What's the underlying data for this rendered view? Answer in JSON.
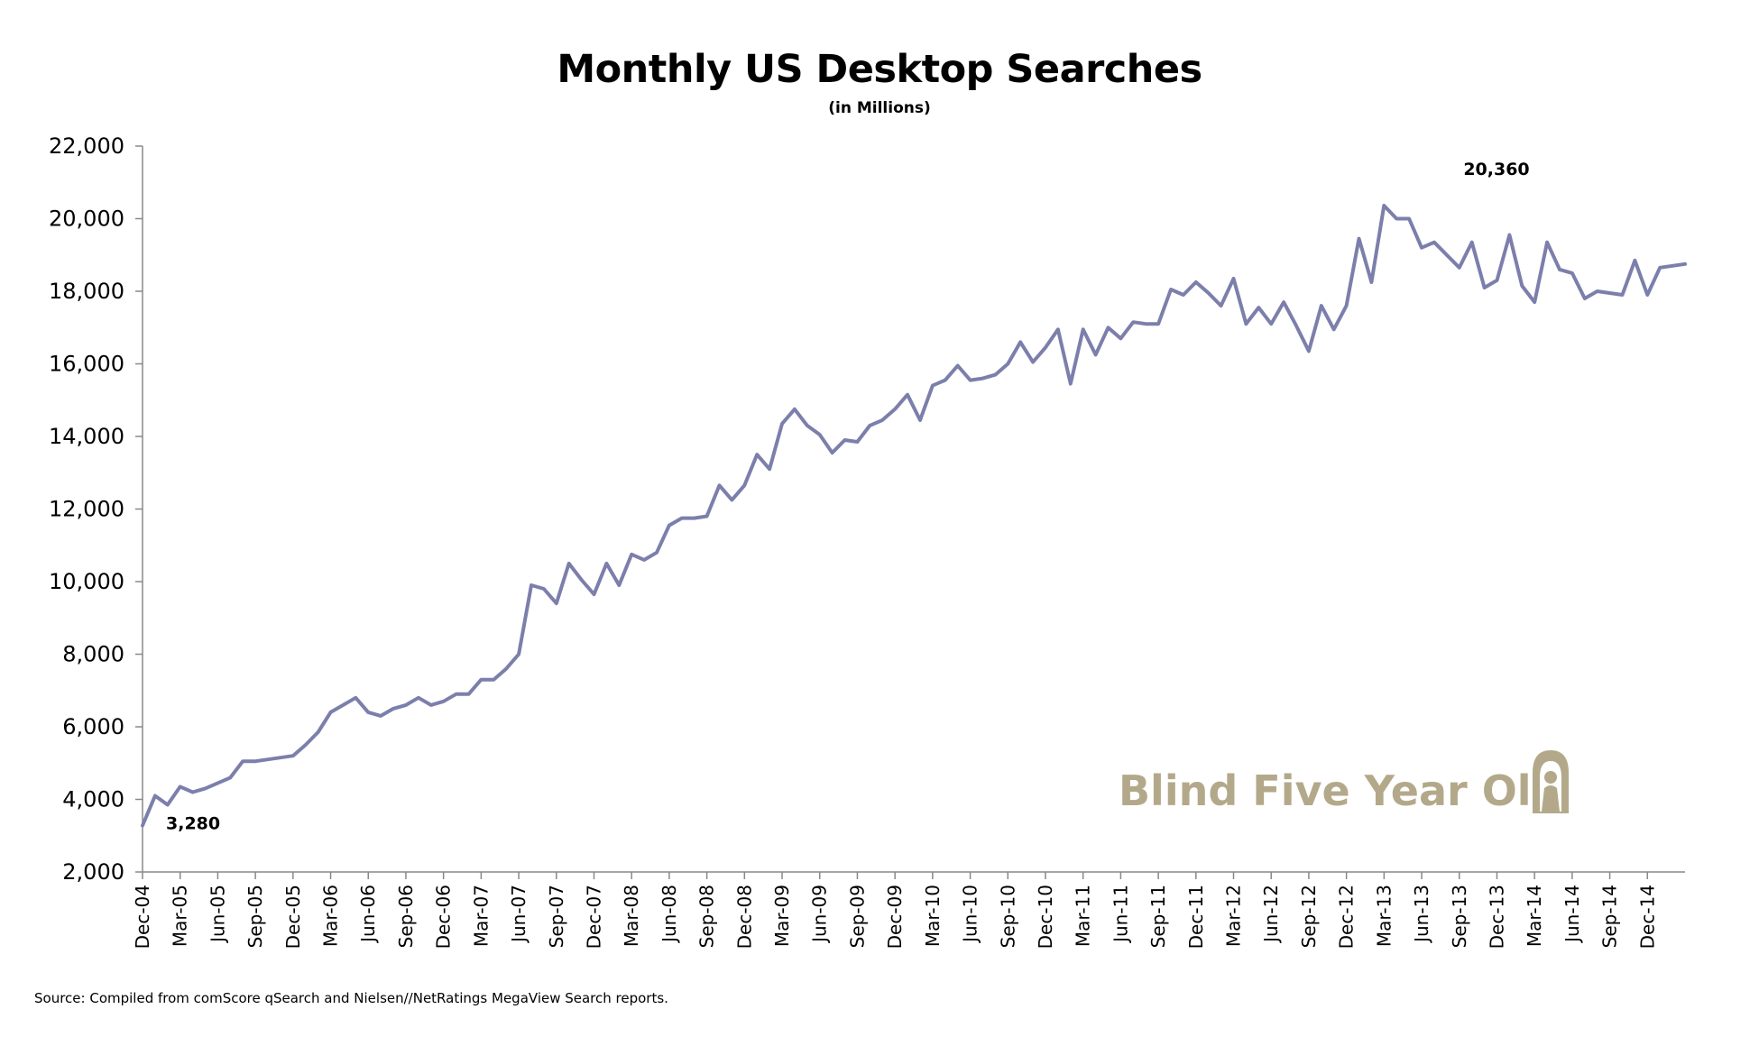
{
  "chart_data": {
    "type": "line",
    "title": "Monthly US Desktop Searches",
    "subtitle": "(in Millions)",
    "xlabel": "",
    "ylabel": "",
    "ylim": [
      2000,
      22000
    ],
    "yticks": [
      "2,000",
      "4,000",
      "6,000",
      "8,000",
      "10,000",
      "12,000",
      "14,000",
      "16,000",
      "18,000",
      "20,000",
      "22,000"
    ],
    "ytick_values": [
      2000,
      4000,
      6000,
      8000,
      10000,
      12000,
      14000,
      16000,
      18000,
      20000,
      22000
    ],
    "xticks": [
      "Dec-04",
      "Mar-05",
      "Jun-05",
      "Sep-05",
      "Dec-05",
      "Mar-06",
      "Jun-06",
      "Sep-06",
      "Dec-06",
      "Mar-07",
      "Jun-07",
      "Sep-07",
      "Dec-07",
      "Mar-08",
      "Jun-08",
      "Sep-08",
      "Dec-08",
      "Mar-09",
      "Jun-09",
      "Sep-09",
      "Dec-09",
      "Mar-10",
      "Jun-10",
      "Sep-10",
      "Dec-10",
      "Mar-11",
      "Jun-11",
      "Sep-11",
      "Dec-11",
      "Mar-12",
      "Jun-12",
      "Sep-12",
      "Dec-12",
      "Mar-13",
      "Jun-13",
      "Sep-13",
      "Dec-13",
      "Mar-14",
      "Jun-14",
      "Sep-14",
      "Dec-14"
    ],
    "grid": false,
    "line_color": "#7c7fab",
    "series": [
      {
        "values": [
          3280,
          4100,
          3850,
          4350,
          4200,
          4300,
          4450,
          4600,
          5050,
          5050,
          5100,
          5150,
          5200,
          5500,
          5850,
          6400,
          6600,
          6800,
          6400,
          6300,
          6500,
          6600,
          6800,
          6600,
          6700,
          6900,
          6900,
          7300,
          7300,
          7600,
          8000,
          9900,
          9800,
          9400,
          10500,
          10050,
          9650,
          10500,
          9900,
          10750,
          10600,
          10800,
          11550,
          11750,
          11750,
          11800,
          12650,
          12250,
          12650,
          13500,
          13100,
          14350,
          14750,
          14300,
          14050,
          13550,
          13900,
          13850,
          14300,
          14450,
          14750,
          15150,
          14450,
          15400,
          15550,
          15950,
          15550,
          15600,
          15700,
          16000,
          16600,
          16050,
          16450,
          16950,
          15450,
          16950,
          16250,
          17000,
          16700,
          17150,
          17100,
          17100,
          18050,
          17900,
          18250,
          17950,
          17600,
          18350,
          17100,
          17550,
          17100,
          17700,
          17050,
          16350,
          17600,
          16950,
          17600,
          19450,
          18250,
          20360,
          20000,
          20000,
          19200,
          19350,
          19000,
          18650,
          19350,
          18100,
          18300,
          19550,
          18150,
          17700,
          19350,
          18600,
          18500,
          17800,
          18000,
          17950,
          17900,
          18850,
          17900,
          18650,
          18700,
          18750
        ]
      }
    ],
    "annotations": [
      {
        "text": "3,280",
        "index": 0
      },
      {
        "text": "20,360",
        "index": 99
      }
    ]
  },
  "source_note": "Source: Compiled from comScore qSearch and Nielsen//NetRatings MegaView Search reports.",
  "watermark": {
    "text": "Blind Five Year Old",
    "color": "#b3a98a",
    "icon": "hooded-figure-icon"
  }
}
